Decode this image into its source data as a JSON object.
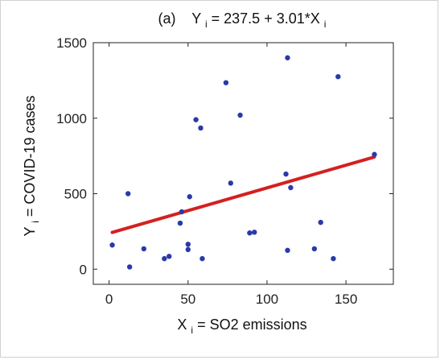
{
  "chart_data": {
    "type": "scatter",
    "title_prefix": "(a)",
    "title_lhs": "Y",
    "title_lhs_sub": "i",
    "title_rhs": " = 237.5 + 3.01*X",
    "title_rhs_sub": "i",
    "xlabel_var": "X",
    "xlabel_sub": "i",
    "xlabel_rest": " = SO2 emissions",
    "ylabel_var": "Y",
    "ylabel_sub": "i",
    "ylabel_rest": " = COVID-19 cases",
    "xlim": [
      -10,
      180
    ],
    "ylim": [
      -100,
      1500
    ],
    "xticks": [
      0,
      50,
      100,
      150
    ],
    "yticks": [
      0,
      500,
      1000,
      1500
    ],
    "points_color": "#2a3aa8",
    "fit_color": "#d42020",
    "fit": {
      "intercept": 237.5,
      "slope": 3.01,
      "x_range": [
        2,
        168
      ]
    },
    "points": [
      [
        2,
        160
      ],
      [
        12,
        500
      ],
      [
        13,
        15
      ],
      [
        22,
        135
      ],
      [
        35,
        70
      ],
      [
        38,
        85
      ],
      [
        45,
        305
      ],
      [
        46,
        380
      ],
      [
        50,
        165
      ],
      [
        50,
        130
      ],
      [
        51,
        480
      ],
      [
        55,
        990
      ],
      [
        58,
        935
      ],
      [
        59,
        70
      ],
      [
        74,
        1235
      ],
      [
        77,
        570
      ],
      [
        83,
        1020
      ],
      [
        89,
        240
      ],
      [
        92,
        245
      ],
      [
        112,
        630
      ],
      [
        113,
        125
      ],
      [
        113,
        1400
      ],
      [
        115,
        540
      ],
      [
        130,
        135
      ],
      [
        134,
        310
      ],
      [
        142,
        70
      ],
      [
        145,
        1275
      ],
      [
        168,
        760
      ]
    ]
  }
}
